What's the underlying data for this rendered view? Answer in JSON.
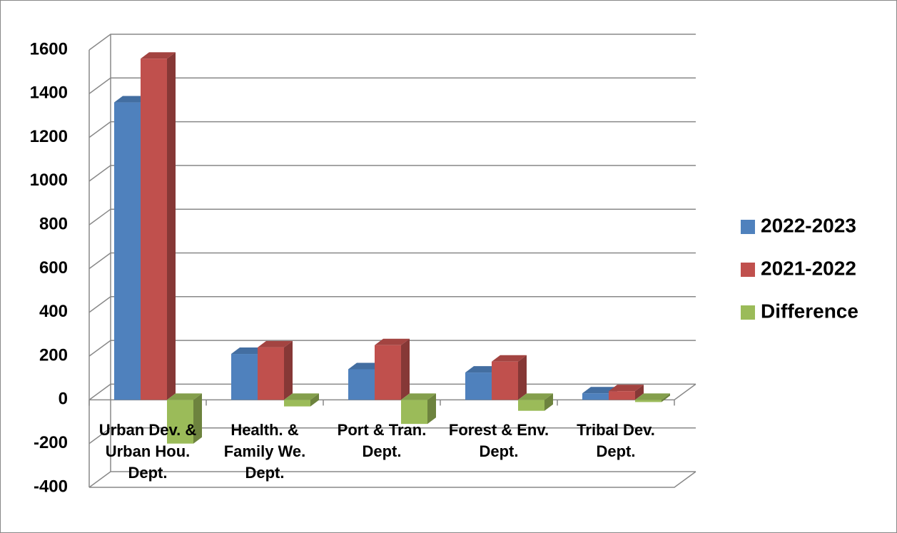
{
  "chart_data": {
    "type": "bar3d",
    "categories": [
      "Urban Dev. & Urban Hou. Dept.",
      "Health. & Family We. Dept.",
      "Port & Tran. Dept.",
      "Forest & Env. Dept.",
      "Tribal Dev. Dept."
    ],
    "series": [
      {
        "name": "2022-2023",
        "color": "#4f81bd",
        "values": [
          1360,
          210,
          140,
          125,
          30
        ]
      },
      {
        "name": "2021-2022",
        "color": "#c0504d",
        "values": [
          1560,
          240,
          250,
          175,
          40
        ]
      },
      {
        "name": "Difference",
        "color": "#9bbb59",
        "values": [
          -200,
          -30,
          -110,
          -50,
          -10
        ]
      }
    ],
    "ylim": [
      -400,
      1600
    ],
    "yticks": [
      -400,
      -200,
      0,
      200,
      400,
      600,
      800,
      1000,
      1200,
      1400,
      1600
    ],
    "grid": true,
    "legend": "right"
  }
}
